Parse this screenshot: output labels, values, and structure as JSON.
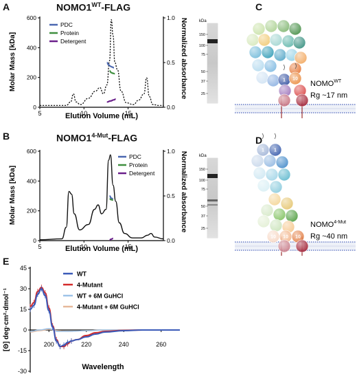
{
  "figure": {
    "panels": {
      "A": {
        "letter": "A",
        "title_main": "NOMO1",
        "title_sup": "WT",
        "title_suffix": "-FLAG"
      },
      "B": {
        "letter": "B",
        "title_main": "NOMO1",
        "title_sup": "4-Mut",
        "title_suffix": "-FLAG"
      },
      "C": {
        "letter": "C",
        "label_main": "NOMO",
        "label_sup": "WT",
        "rg": "Rg ~17 nm"
      },
      "D": {
        "letter": "D",
        "label_main": "NOMO",
        "label_sup": "4-Mut",
        "rg": "Rg ~40 nm"
      },
      "E": {
        "letter": "E"
      }
    },
    "gel": {
      "unit": "kDa",
      "markers": [
        "150",
        "100",
        "75",
        "50",
        "37",
        "25"
      ]
    },
    "bead_labels": [
      "1",
      "10"
    ],
    "colors": {
      "pdc": "#4a67b0",
      "protein": "#3f8f3f",
      "detergent": "#6a1f8a",
      "wt": "#3a5ab8",
      "mut4": "#d42a2a",
      "wt_gu": "#9ec3e8",
      "mut4_gu": "#e6b89a"
    }
  },
  "chart_data": [
    {
      "panel": "A",
      "type": "line",
      "xlabel": "Elution Volume (mL)",
      "ylabel": "Molar Mass [kDa]",
      "y2label": "Normalized absorbance",
      "xlim": [
        5,
        19
      ],
      "ylim": [
        0,
        600
      ],
      "y2lim": [
        0,
        1.0
      ],
      "xticks": [
        "5",
        "10",
        "15"
      ],
      "yticks": [
        "0",
        "200",
        "400",
        "600"
      ],
      "y2ticks": [
        "0.0",
        "0.5",
        "1.0"
      ],
      "legend": [
        "PDC",
        "Protein",
        "Detergent"
      ],
      "absorbance": {
        "x": [
          5,
          8.0,
          8.5,
          8.8,
          9.1,
          9.6,
          10.5,
          11.3,
          11.8,
          12.2,
          12.6,
          12.9,
          13.1,
          13.3,
          13.5,
          13.8,
          14.2,
          14.8,
          15.6,
          16.2,
          16.8,
          17.1,
          17.4,
          17.8,
          18.5,
          19
        ],
        "y": [
          0.02,
          0.02,
          0.06,
          0.15,
          0.06,
          0.03,
          0.1,
          0.18,
          0.22,
          0.15,
          0.25,
          0.52,
          0.98,
          0.8,
          0.5,
          0.42,
          0.18,
          0.05,
          0.03,
          0.08,
          0.15,
          0.33,
          0.12,
          0.03,
          0.02,
          0.02
        ]
      },
      "pdc": {
        "x": [
          12.6,
          12.8,
          13.0,
          13.2,
          13.4
        ],
        "y": [
          300,
          285,
          275,
          270,
          265
        ]
      },
      "protein": {
        "x": [
          12.9,
          13.1,
          13.3,
          13.5
        ],
        "y": [
          245,
          232,
          228,
          225
        ]
      },
      "detergent": {
        "x": [
          12.6,
          13.0,
          13.4,
          13.6
        ],
        "y": [
          35,
          42,
          50,
          55
        ]
      }
    },
    {
      "panel": "B",
      "type": "line",
      "xlabel": "Elution Volume (mL)",
      "ylabel": "Molar Mass [kDa]",
      "y2label": "Normalized absorbance",
      "xlim": [
        5,
        19
      ],
      "ylim": [
        0,
        600
      ],
      "y2lim": [
        0,
        1.0
      ],
      "xticks": [
        "5",
        "10",
        "15"
      ],
      "yticks": [
        "0",
        "200",
        "400",
        "600"
      ],
      "y2ticks": [
        "0.0",
        "0.5",
        "1.0"
      ],
      "legend": [
        "PDC",
        "Protein",
        "Detergent"
      ],
      "absorbance": {
        "x": [
          5,
          7.5,
          8.0,
          8.3,
          8.6,
          8.9,
          9.5,
          10.5,
          11.2,
          11.6,
          12.0,
          12.5,
          12.8,
          13.0,
          13.3,
          13.6,
          14.0,
          14.6,
          15.5,
          16.5,
          17.2,
          17.6,
          18.0,
          19
        ],
        "y": [
          0.01,
          0.02,
          0.15,
          0.55,
          0.52,
          0.3,
          0.12,
          0.18,
          0.35,
          0.4,
          0.3,
          0.35,
          0.9,
          0.96,
          0.62,
          0.44,
          0.2,
          0.08,
          0.03,
          0.03,
          0.06,
          0.08,
          0.04,
          0.02
        ]
      },
      "pdc": {
        "x": [
          12.9,
          13.1,
          13.3
        ],
        "y": [
          300,
          285,
          280
        ]
      },
      "protein": {
        "x": [
          12.9,
          13.1,
          13.3
        ],
        "y": [
          280,
          275,
          272
        ]
      },
      "detergent": {
        "x": [
          12.9,
          13.1,
          13.3
        ],
        "y": [
          5,
          10,
          15
        ]
      }
    },
    {
      "panel": "E",
      "type": "line",
      "xlabel": "Wavelength",
      "ylabel": "[Θ] deg·cm²·dmol⁻¹",
      "xlim": [
        190,
        270
      ],
      "ylim": [
        -30,
        45
      ],
      "xticks": [
        "200",
        "220",
        "240",
        "260"
      ],
      "yticks": [
        "-30",
        "-15",
        "0",
        "15",
        "30",
        "45"
      ],
      "legend": [
        "WT",
        "4-Mutant",
        "WT + 6M GuHCl",
        "4-Mutant + 6M GuHCl"
      ],
      "series": [
        {
          "name": "WT",
          "x": [
            190,
            192,
            194,
            196,
            198,
            200,
            202,
            204,
            206,
            208,
            210,
            212,
            215,
            220,
            225,
            230,
            240,
            250,
            260,
            270
          ],
          "y": [
            15,
            18,
            26,
            30,
            25,
            14,
            2,
            -8,
            -12,
            -11,
            -9,
            -8,
            -7,
            -5,
            -3,
            -1.5,
            -0.5,
            0,
            0,
            0
          ]
        },
        {
          "name": "4-Mutant",
          "x": [
            190,
            192,
            194,
            196,
            198,
            200,
            202,
            204,
            206,
            208,
            210,
            212,
            215,
            220,
            225,
            230,
            240,
            250,
            260,
            270
          ],
          "y": [
            17,
            20,
            28,
            31,
            27,
            16,
            3,
            -7,
            -12,
            -12,
            -10,
            -8,
            -7,
            -4,
            -2,
            -1,
            -0.3,
            0,
            0,
            0
          ]
        },
        {
          "name": "WT + 6M GuHCl",
          "x": [
            190,
            195,
            200,
            205,
            210,
            220,
            230,
            250,
            270
          ],
          "y": [
            -1,
            0,
            1,
            -1,
            -1,
            -0.5,
            0,
            0,
            0
          ]
        },
        {
          "name": "4-Mutant + 6M GuHCl",
          "x": [
            190,
            195,
            200,
            205,
            210,
            220,
            230,
            250,
            270
          ],
          "y": [
            -1.5,
            -0.5,
            0.5,
            -0.5,
            -1,
            -0.5,
            0,
            0,
            0
          ]
        }
      ]
    }
  ]
}
